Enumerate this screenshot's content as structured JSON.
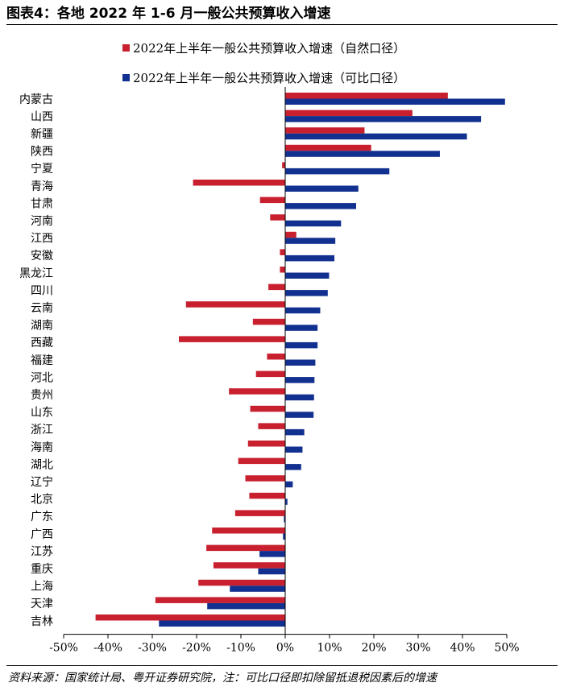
{
  "figure": {
    "title": "图表4：各地 2022 年 1-6 月一般公共预算收入增速",
    "source": "资料来源：国家统计局、粤开证券研究院，注：可比口径即扣除留抵退税因素后的增速"
  },
  "colors": {
    "natural": "#c8202f",
    "comparable": "#12308f"
  },
  "chart_data": {
    "type": "bar",
    "orientation": "horizontal",
    "categories": [
      "内蒙古",
      "山西",
      "新疆",
      "陕西",
      "宁夏",
      "青海",
      "甘肃",
      "河南",
      "江西",
      "安徽",
      "黑龙江",
      "四川",
      "云南",
      "湖南",
      "西藏",
      "福建",
      "河北",
      "贵州",
      "山东",
      "浙江",
      "海南",
      "湖北",
      "辽宁",
      "北京",
      "广东",
      "广西",
      "江苏",
      "重庆",
      "上海",
      "天津",
      "吉林"
    ],
    "series": [
      {
        "name": "2022年上半年一般公共预算收入增速（自然口径）",
        "values": [
          36.7,
          28.7,
          17.9,
          19.4,
          -0.7,
          -20.8,
          -5.7,
          -3.4,
          2.5,
          -1.2,
          -1.2,
          -3.8,
          -22.4,
          -7.3,
          -24.0,
          -4.1,
          -6.6,
          -12.7,
          -7.9,
          -6.1,
          -8.4,
          -10.6,
          -9.0,
          -8.1,
          -11.3,
          -16.5,
          -17.8,
          -16.2,
          -19.6,
          -29.3,
          -42.8
        ]
      },
      {
        "name": "2022年上半年一般公共预算收入增速（可比口径）",
        "values": [
          49.6,
          44.2,
          41.0,
          34.9,
          23.5,
          16.5,
          16.0,
          12.6,
          11.3,
          11.1,
          9.9,
          9.6,
          7.9,
          7.3,
          7.3,
          6.8,
          6.6,
          6.5,
          6.4,
          4.3,
          3.9,
          3.6,
          1.7,
          0.5,
          -0.3,
          -0.5,
          -5.8,
          -6.1,
          -12.5,
          -17.6,
          -28.5
        ]
      }
    ],
    "xlim": [
      -50,
      50
    ],
    "xticks": [
      "-50%",
      "-40%",
      "-30%",
      "-20%",
      "-10%",
      "0%",
      "10%",
      "20%",
      "30%",
      "40%",
      "50%"
    ],
    "grid": false,
    "legend": "top"
  }
}
